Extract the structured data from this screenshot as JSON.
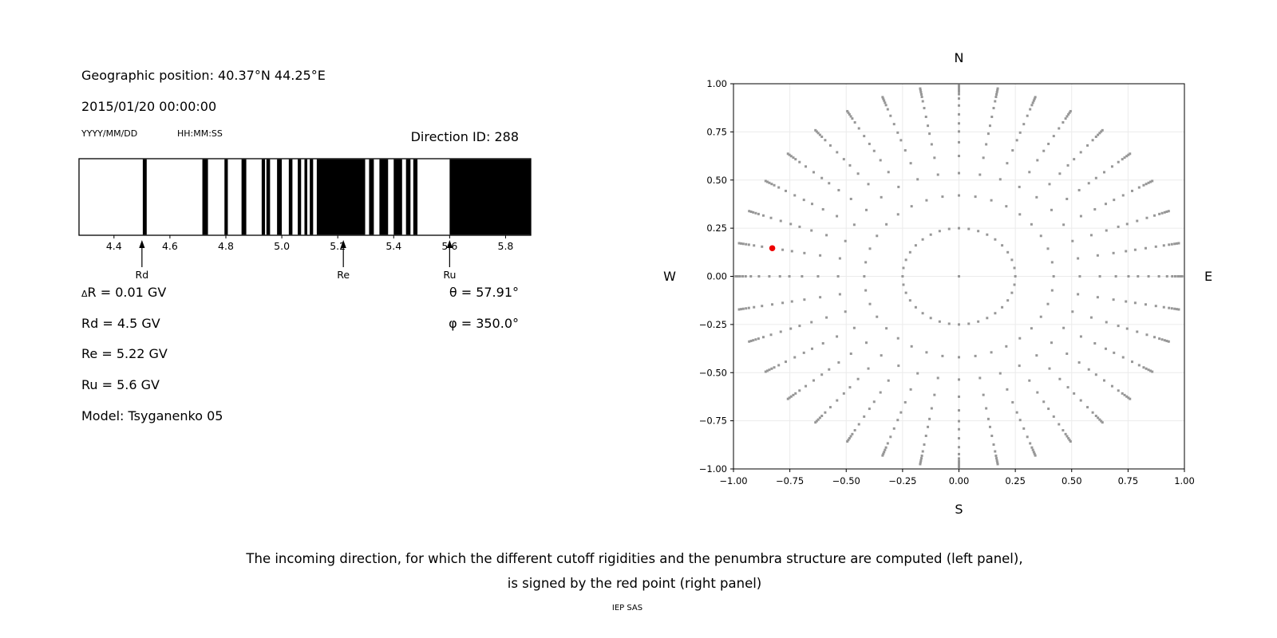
{
  "header": {
    "geo_position": "Geographic position: 40.37°N 44.25°E",
    "datetime": "2015/01/20 00:00:00",
    "date_format_label": "YYYY/MM/DD",
    "time_format_label": "HH:MM:SS",
    "direction_id": "Direction ID: 288"
  },
  "parameters": {
    "delta_symbol": "Δ",
    "delta_r_rest": "R = 0.01 GV",
    "rd": "Rd = 4.5 GV",
    "re": "Re = 5.22 GV",
    "ru": "Ru = 5.6 GV",
    "model": "Model: Tsyganenko 05",
    "theta": "θ = 57.91°",
    "phi": "φ = 350.0°"
  },
  "caption": {
    "line1": "The incoming direction, for which the different cutoff rigidities and the penumbra structure are computed (left panel),",
    "line2": "is signed by the red point (right panel)",
    "credit": "IEP SAS"
  },
  "chart_data": [
    {
      "type": "bar",
      "name": "penumbra-structure",
      "xlim": [
        4.275,
        5.89
      ],
      "xticks": [
        4.4,
        4.6,
        4.8,
        5.0,
        5.2,
        5.4,
        5.6,
        5.8
      ],
      "forbidden_bands_gv": [
        [
          4.503,
          4.517
        ],
        [
          4.716,
          4.736
        ],
        [
          4.795,
          4.807
        ],
        [
          4.856,
          4.873
        ],
        [
          4.928,
          4.94
        ],
        [
          4.945,
          4.958
        ],
        [
          4.983,
          5.0
        ],
        [
          5.025,
          5.038
        ],
        [
          5.057,
          5.069
        ],
        [
          5.081,
          5.091
        ],
        [
          5.1,
          5.112
        ],
        [
          5.125,
          5.298
        ],
        [
          5.312,
          5.329
        ],
        [
          5.349,
          5.38
        ],
        [
          5.4,
          5.43
        ],
        [
          5.444,
          5.46
        ],
        [
          5.47,
          5.485
        ],
        [
          5.6,
          5.89
        ]
      ],
      "markers": [
        {
          "label": "Rd",
          "value": 4.5
        },
        {
          "label": "Re",
          "value": 5.22
        },
        {
          "label": "Ru",
          "value": 5.6
        }
      ],
      "bar_color": "#000000"
    },
    {
      "type": "scatter",
      "name": "incoming-directions",
      "xlim": [
        -1,
        1
      ],
      "ylim": [
        -1,
        1
      ],
      "ticks": [
        -1.0,
        -0.75,
        -0.5,
        -0.25,
        0.0,
        0.25,
        0.5,
        0.75,
        1.0
      ],
      "grid": true,
      "grid_color": "#ebebeb",
      "direction_labels": {
        "top": "N",
        "bottom": "S",
        "left": "W",
        "right": "E"
      },
      "azimuth_count": 36,
      "azimuth_step_deg": 10,
      "spoke_radii": [
        0.25,
        0.42,
        0.536,
        0.625,
        0.696,
        0.752,
        0.794,
        0.841,
        0.887,
        0.923,
        0.946,
        0.959,
        0.971,
        0.981,
        0.99
      ],
      "center_dot": true,
      "dot_color": "#979797",
      "red_point": {
        "x": -0.828,
        "y": 0.146,
        "color": "#ee0000"
      }
    }
  ]
}
